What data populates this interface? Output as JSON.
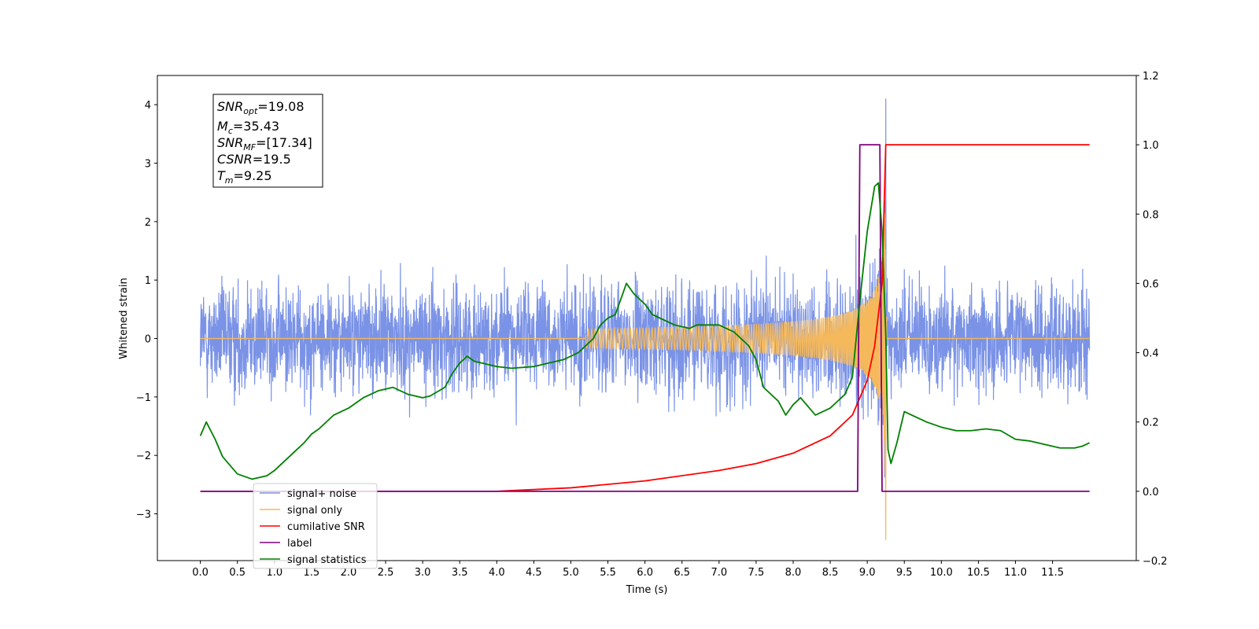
{
  "chart_data": {
    "type": "line",
    "xlabel": "Time (s)",
    "ylabel": "Whitened strain",
    "x_ticks": [
      "0.0",
      "0.5",
      "1.0",
      "1.5",
      "2.0",
      "2.5",
      "3.0",
      "3.5",
      "4.0",
      "4.5",
      "5.0",
      "5.5",
      "6.0",
      "6.5",
      "7.0",
      "7.5",
      "8.0",
      "8.5",
      "9.0",
      "9.5",
      "10.0",
      "10.5",
      "11.0",
      "11.5"
    ],
    "xlim": [
      -0.58,
      12.63
    ],
    "ylim_left": [
      -3.8,
      4.5
    ],
    "yticks_left": [
      "4",
      "3",
      "2",
      "1",
      "0",
      "−1",
      "−2",
      "−3"
    ],
    "ylim_right": [
      -0.2,
      1.2
    ],
    "yticks_right": [
      "1.2",
      "1.0",
      "0.8",
      "0.6",
      "0.4",
      "0.2",
      "0.0",
      "−0.2"
    ],
    "legend_position": "lower-left",
    "annotation": {
      "snr_opt": {
        "symbol": "SNR",
        "sub": "opt",
        "value": "=19.08"
      },
      "mc": {
        "symbol": "M",
        "sub": "c",
        "value": "=35.43"
      },
      "snr_mf": {
        "symbol": "SNR",
        "sub": "MF",
        "value": "=[17.34]"
      },
      "csnr": {
        "symbol": "CSNR",
        "sub": "",
        "value": "=19.5"
      },
      "tm": {
        "symbol": "T",
        "sub": "m",
        "value": "=9.25"
      }
    },
    "series": [
      {
        "name": "signal+ noise",
        "color": "#7b93e6",
        "axis": "left",
        "style": "noise",
        "std": 0.62,
        "x_range": [
          0.0,
          12.0
        ],
        "merger_peak": 4.1,
        "merger_time": 9.25
      },
      {
        "name": "signal only",
        "color": "#f5b95c",
        "axis": "left",
        "style": "chirp",
        "x_range": [
          0.0,
          12.0
        ],
        "chirp_start": 5.2,
        "peak_amplitude": 3.65,
        "min_amplitude": -3.45,
        "merger_time": 9.25
      },
      {
        "name": "cumilative SNR",
        "color": "#ff0000",
        "axis": "right",
        "x": [
          0.0,
          4.0,
          5.0,
          6.0,
          7.0,
          7.5,
          8.0,
          8.5,
          8.8,
          9.0,
          9.1,
          9.2,
          9.25,
          12.0
        ],
        "y": [
          0.0,
          0.0,
          0.01,
          0.03,
          0.06,
          0.08,
          0.11,
          0.16,
          0.22,
          0.32,
          0.42,
          0.6,
          1.0,
          1.0
        ]
      },
      {
        "name": "label",
        "color": "#800080",
        "axis": "right",
        "x": [
          0.0,
          8.87,
          8.9,
          9.17,
          9.2,
          12.0
        ],
        "y": [
          0.0,
          0.0,
          1.0,
          1.0,
          0.0,
          0.0
        ]
      },
      {
        "name": "signal statistics",
        "color": "#008000",
        "axis": "right",
        "x": [
          0.0,
          0.08,
          0.2,
          0.3,
          0.5,
          0.7,
          0.9,
          1.0,
          1.2,
          1.4,
          1.5,
          1.6,
          1.8,
          2.0,
          2.2,
          2.4,
          2.6,
          2.8,
          2.9,
          3.0,
          3.1,
          3.3,
          3.4,
          3.5,
          3.6,
          3.7,
          3.8,
          4.0,
          4.2,
          4.5,
          4.7,
          4.9,
          5.1,
          5.3,
          5.4,
          5.5,
          5.6,
          5.75,
          5.85,
          6.0,
          6.1,
          6.2,
          6.4,
          6.6,
          6.7,
          6.8,
          7.0,
          7.2,
          7.4,
          7.5,
          7.6,
          7.8,
          7.9,
          8.0,
          8.1,
          8.3,
          8.5,
          8.6,
          8.7,
          8.8,
          8.9,
          9.0,
          9.1,
          9.15,
          9.2,
          9.25,
          9.28,
          9.32,
          9.4,
          9.5,
          9.6,
          9.8,
          10.0,
          10.2,
          10.4,
          10.6,
          10.8,
          11.0,
          11.2,
          11.4,
          11.6,
          11.8,
          11.9,
          12.0
        ],
        "y": [
          0.16,
          0.2,
          0.15,
          0.1,
          0.05,
          0.035,
          0.045,
          0.06,
          0.1,
          0.14,
          0.165,
          0.18,
          0.22,
          0.24,
          0.27,
          0.29,
          0.3,
          0.28,
          0.275,
          0.27,
          0.275,
          0.3,
          0.34,
          0.37,
          0.39,
          0.375,
          0.37,
          0.36,
          0.355,
          0.36,
          0.37,
          0.38,
          0.4,
          0.44,
          0.48,
          0.5,
          0.51,
          0.6,
          0.57,
          0.54,
          0.51,
          0.5,
          0.48,
          0.47,
          0.48,
          0.48,
          0.48,
          0.46,
          0.42,
          0.38,
          0.3,
          0.26,
          0.22,
          0.25,
          0.27,
          0.22,
          0.24,
          0.26,
          0.28,
          0.33,
          0.55,
          0.75,
          0.88,
          0.89,
          0.75,
          0.45,
          0.12,
          0.08,
          0.14,
          0.23,
          0.22,
          0.2,
          0.185,
          0.175,
          0.175,
          0.18,
          0.175,
          0.15,
          0.145,
          0.135,
          0.125,
          0.125,
          0.13,
          0.14
        ]
      }
    ]
  }
}
